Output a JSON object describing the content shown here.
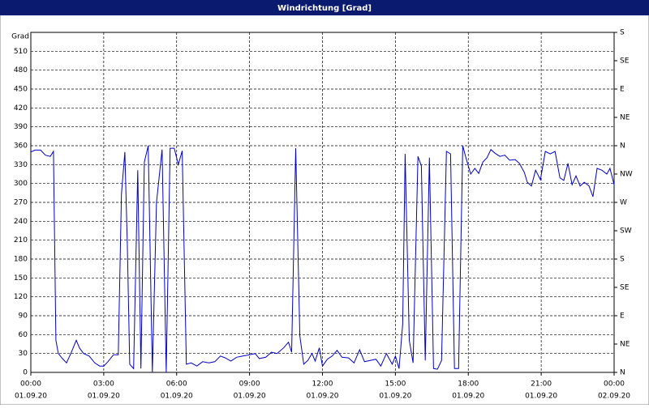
{
  "chart_data": {
    "type": "line",
    "title": "Windrichtung [Grad]",
    "ylabel": "Grad",
    "color": "#0000cc",
    "grid": true,
    "xlim": [
      0,
      24
    ],
    "xticks": [
      {
        "value": 0,
        "label": [
          "00:00",
          "01.09.20"
        ]
      },
      {
        "value": 3,
        "label": [
          "03:00",
          "01.09.20"
        ]
      },
      {
        "value": 6,
        "label": [
          "06:00",
          "01.09.20"
        ]
      },
      {
        "value": 9,
        "label": [
          "09:00",
          "01.09.20"
        ]
      },
      {
        "value": 12,
        "label": [
          "12:00",
          "01.09.20"
        ]
      },
      {
        "value": 15,
        "label": [
          "15:00",
          "01.09.20"
        ]
      },
      {
        "value": 18,
        "label": [
          "18:00",
          "01.09.20"
        ]
      },
      {
        "value": 21,
        "label": [
          "21:00",
          "01.09.20"
        ]
      },
      {
        "value": 24,
        "label": [
          "00:00",
          "02.09.20"
        ]
      }
    ],
    "ylim": [
      0,
      540
    ],
    "yticks": [
      0,
      30,
      60,
      90,
      120,
      150,
      180,
      210,
      240,
      270,
      300,
      330,
      360,
      390,
      420,
      450,
      480,
      510
    ],
    "y2lim": [
      0,
      540
    ],
    "y2ticks": [
      {
        "value": 0,
        "label": "N"
      },
      {
        "value": 45,
        "label": "NE"
      },
      {
        "value": 90,
        "label": "E"
      },
      {
        "value": 135,
        "label": "SE"
      },
      {
        "value": 180,
        "label": "S"
      },
      {
        "value": 225,
        "label": "SW"
      },
      {
        "value": 270,
        "label": "W"
      },
      {
        "value": 315,
        "label": "NW"
      },
      {
        "value": 360,
        "label": "N"
      },
      {
        "value": 405,
        "label": "NE"
      },
      {
        "value": 450,
        "label": "E"
      },
      {
        "value": 495,
        "label": "SE"
      },
      {
        "value": 540,
        "label": "S"
      }
    ],
    "x": [
      0,
      0.17,
      0.4,
      0.6,
      0.8,
      0.93,
      1.03,
      1.13,
      1.3,
      1.47,
      1.67,
      1.87,
      2.0,
      2.17,
      2.4,
      2.63,
      2.83,
      3.0,
      3.17,
      3.4,
      3.6,
      3.73,
      3.87,
      3.97,
      4.07,
      4.23,
      4.4,
      4.53,
      4.67,
      4.83,
      5.0,
      5.17,
      5.4,
      5.57,
      5.73,
      5.9,
      6.07,
      6.23,
      6.4,
      6.6,
      6.83,
      7.07,
      7.33,
      7.57,
      7.8,
      8.0,
      8.23,
      8.47,
      8.73,
      9.0,
      9.23,
      9.4,
      9.67,
      9.9,
      10.13,
      10.4,
      10.6,
      10.73,
      10.9,
      11.07,
      11.23,
      11.4,
      11.57,
      11.7,
      11.87,
      12.0,
      12.2,
      12.4,
      12.6,
      12.8,
      13.07,
      13.3,
      13.53,
      13.73,
      13.97,
      14.2,
      14.4,
      14.63,
      14.87,
      15.0,
      15.15,
      15.3,
      15.4,
      15.57,
      15.73,
      15.93,
      16.07,
      16.23,
      16.4,
      16.57,
      16.73,
      16.9,
      17.1,
      17.27,
      17.43,
      17.6,
      17.77,
      17.9,
      18.1,
      18.27,
      18.43,
      18.6,
      18.77,
      18.93,
      19.1,
      19.3,
      19.5,
      19.7,
      19.93,
      20.1,
      20.3,
      20.43,
      20.6,
      20.77,
      20.97,
      21.17,
      21.37,
      21.57,
      21.77,
      21.93,
      22.1,
      22.27,
      22.43,
      22.6,
      22.77,
      22.97,
      23.13,
      23.3,
      23.5,
      23.7,
      23.83,
      24.0
    ],
    "values": [
      350,
      353,
      353,
      345,
      343,
      351,
      51,
      30,
      22,
      15,
      32,
      51,
      39,
      30,
      26,
      15,
      10,
      10,
      17,
      28,
      28,
      283,
      350,
      206,
      13,
      6,
      321,
      6,
      334,
      360,
      0,
      270,
      354,
      0,
      356,
      356,
      330,
      352,
      13,
      15,
      10,
      17,
      15,
      17,
      26,
      23,
      18,
      24,
      26,
      28,
      30,
      22,
      24,
      32,
      30,
      39,
      48,
      32,
      356,
      58,
      13,
      19,
      30,
      18,
      39,
      10,
      21,
      26,
      35,
      24,
      23,
      15,
      36,
      17,
      19,
      21,
      10,
      30,
      13,
      26,
      6,
      77,
      347,
      51,
      15,
      343,
      328,
      19,
      341,
      6,
      5,
      19,
      351,
      347,
      6,
      6,
      360,
      341,
      315,
      324,
      316,
      334,
      341,
      354,
      348,
      343,
      345,
      337,
      338,
      332,
      318,
      302,
      296,
      321,
      306,
      351,
      347,
      351,
      309,
      305,
      332,
      298,
      312,
      296,
      302,
      296,
      279,
      324,
      321,
      315,
      324,
      298
    ]
  }
}
